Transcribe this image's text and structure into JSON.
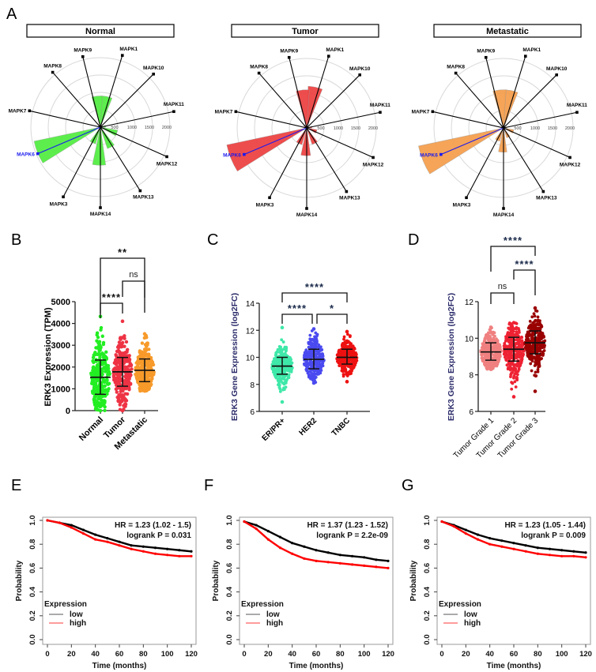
{
  "figure": {
    "panel_letters": [
      "A",
      "B",
      "C",
      "D",
      "E",
      "F",
      "G"
    ]
  },
  "chart_data": [
    {
      "panel": "A",
      "type": "polar-bar",
      "title": "Normal",
      "color": "#55ee44",
      "categories": [
        "MAPK1",
        "MAPK10",
        "MAPK11",
        "MAPK12",
        "MAPK13",
        "MAPK14",
        "MAPK3",
        "MAPK6",
        "MAPK7",
        "MAPK8",
        "MAPK9"
      ],
      "values": [
        900,
        60,
        150,
        500,
        650,
        1100,
        500,
        1950,
        60,
        70,
        900
      ],
      "highlight": "MAPK6",
      "highlight_color": "#1a1aee",
      "radial_ticks": [
        500,
        1000,
        1500,
        2000
      ],
      "rmax": 2000
    },
    {
      "panel": "A",
      "type": "polar-bar",
      "title": "Tumor",
      "color": "#ee4444",
      "categories": [
        "MAPK1",
        "MAPK10",
        "MAPK11",
        "MAPK12",
        "MAPK13",
        "MAPK14",
        "MAPK3",
        "MAPK6",
        "MAPK7",
        "MAPK8",
        "MAPK9"
      ],
      "values": [
        1200,
        60,
        150,
        300,
        500,
        800,
        500,
        2350,
        80,
        100,
        1100
      ],
      "highlight": "MAPK6",
      "highlight_color": "#1a1aee",
      "radial_ticks": [
        500,
        1000,
        1500,
        2000
      ],
      "rmax": 2000
    },
    {
      "panel": "A",
      "type": "polar-bar",
      "title": "Metastatic",
      "color": "#f5a050",
      "categories": [
        "MAPK1",
        "MAPK10",
        "MAPK11",
        "MAPK12",
        "MAPK13",
        "MAPK14",
        "MAPK3",
        "MAPK6",
        "MAPK7",
        "MAPK8",
        "MAPK9"
      ],
      "values": [
        1100,
        40,
        100,
        300,
        300,
        700,
        400,
        2500,
        60,
        80,
        1100
      ],
      "highlight": "MAPK6",
      "highlight_color": "#1a1aee",
      "radial_ticks": [
        500,
        1000,
        1500,
        2000
      ],
      "rmax": 2000
    },
    {
      "panel": "B",
      "type": "violin",
      "ylabel": "ERK3 Expression (TPM)",
      "ylim": [
        0,
        5000
      ],
      "yticks": [
        0,
        1000,
        2000,
        3000,
        4000,
        5000
      ],
      "categories": [
        "Normal",
        "Tumor",
        "Metastatic"
      ],
      "colors": [
        "#22ee22",
        "#ee3344",
        "#f79a2a"
      ],
      "median": [
        1530,
        1780,
        1850
      ],
      "q1": [
        750,
        1120,
        1330
      ],
      "q3": [
        2320,
        2440,
        2370
      ],
      "min": [
        0,
        0,
        900
      ],
      "max": [
        4320,
        4100,
        3520
      ],
      "significance": [
        {
          "from": 0,
          "to": 2,
          "label": "**"
        },
        {
          "from": 1,
          "to": 2,
          "label": "ns"
        },
        {
          "from": 0,
          "to": 1,
          "label": "****"
        }
      ]
    },
    {
      "panel": "C",
      "type": "scatter-dot",
      "ylabel": "ERK3 Gene Expression (log2FC)",
      "ylim": [
        6,
        14
      ],
      "yticks": [
        6,
        8,
        10,
        12,
        14
      ],
      "categories": [
        "ER/PR+",
        "HER2",
        "TNBC"
      ],
      "colors": [
        "#3ee8a8",
        "#4a4af0",
        "#ee1111"
      ],
      "median": [
        9.35,
        9.85,
        10.0
      ],
      "lower": [
        8.75,
        9.15,
        9.5
      ],
      "upper": [
        10.0,
        10.6,
        10.6
      ],
      "min": [
        6.7,
        8.1,
        8.2
      ],
      "max": [
        12.2,
        12.1,
        11.9
      ],
      "significance": [
        {
          "from": 0,
          "to": 2,
          "label": "****"
        },
        {
          "from": 0,
          "to": 1,
          "label": "****"
        },
        {
          "from": 1,
          "to": 2,
          "label": "*"
        }
      ]
    },
    {
      "panel": "D",
      "type": "scatter-dot",
      "ylabel": "ERK3 Gene Expression (log2FC)",
      "ylim": [
        6,
        12
      ],
      "yticks": [
        6,
        8,
        10,
        12
      ],
      "categories": [
        "Tumor Grade 1",
        "Tumor Grade 2",
        "Tumor Grade 3"
      ],
      "colors": [
        "#f08080",
        "#ee2233",
        "#9a0000"
      ],
      "median": [
        9.25,
        9.4,
        9.75
      ],
      "lower": [
        8.8,
        8.75,
        9.15
      ],
      "upper": [
        9.75,
        10.05,
        10.4
      ],
      "min": [
        8.3,
        6.8,
        7.1
      ],
      "max": [
        10.6,
        10.85,
        11.65
      ],
      "significance": [
        {
          "from": 0,
          "to": 2,
          "label": "****"
        },
        {
          "from": 1,
          "to": 2,
          "label": "****"
        },
        {
          "from": 0,
          "to": 1,
          "label": "ns"
        }
      ]
    },
    {
      "panel": "E",
      "type": "line",
      "xlabel": "Time (months)",
      "ylabel": "Probability",
      "xlim": [
        0,
        120
      ],
      "ylim": [
        0,
        1
      ],
      "xticks": [
        0,
        20,
        40,
        60,
        80,
        100,
        120
      ],
      "yticks": [
        0.0,
        0.2,
        0.4,
        0.6,
        0.8,
        1.0
      ],
      "annotation": [
        "HR = 1.23 (1.02 - 1.5)",
        "logrank P = 0.031"
      ],
      "legend_title": "Expression",
      "legend_position": "bottom-left",
      "series": [
        {
          "name": "low",
          "color": "#000000",
          "x": [
            0,
            10,
            20,
            30,
            40,
            50,
            60,
            70,
            80,
            90,
            100,
            110,
            120
          ],
          "y": [
            1.0,
            0.98,
            0.96,
            0.92,
            0.88,
            0.85,
            0.82,
            0.79,
            0.78,
            0.77,
            0.76,
            0.75,
            0.74
          ]
        },
        {
          "name": "high",
          "color": "#ff0000",
          "x": [
            0,
            10,
            20,
            30,
            40,
            50,
            60,
            70,
            80,
            90,
            100,
            110,
            120
          ],
          "y": [
            1.0,
            0.98,
            0.94,
            0.89,
            0.84,
            0.82,
            0.79,
            0.76,
            0.74,
            0.72,
            0.71,
            0.7,
            0.7
          ]
        }
      ]
    },
    {
      "panel": "F",
      "type": "line",
      "xlabel": "Time (months)",
      "ylabel": "Probability",
      "xlim": [
        0,
        120
      ],
      "ylim": [
        0,
        1
      ],
      "xticks": [
        0,
        20,
        40,
        60,
        80,
        100,
        120
      ],
      "yticks": [
        0.0,
        0.2,
        0.4,
        0.6,
        0.8,
        1.0
      ],
      "annotation": [
        "HR = 1.37 (1.23 - 1.52)",
        "logrank P = 2.2e-09"
      ],
      "legend_title": "Expression",
      "legend_position": "bottom-left",
      "series": [
        {
          "name": "low",
          "color": "#000000",
          "x": [
            0,
            10,
            20,
            30,
            40,
            50,
            60,
            70,
            80,
            90,
            100,
            110,
            120
          ],
          "y": [
            0.99,
            0.96,
            0.91,
            0.86,
            0.81,
            0.78,
            0.75,
            0.73,
            0.71,
            0.7,
            0.69,
            0.67,
            0.66
          ]
        },
        {
          "name": "high",
          "color": "#ff0000",
          "x": [
            0,
            10,
            20,
            30,
            40,
            50,
            60,
            70,
            80,
            90,
            100,
            110,
            120
          ],
          "y": [
            0.99,
            0.93,
            0.84,
            0.77,
            0.72,
            0.68,
            0.66,
            0.65,
            0.64,
            0.63,
            0.62,
            0.61,
            0.6
          ]
        }
      ]
    },
    {
      "panel": "G",
      "type": "line",
      "xlabel": "Time (months)",
      "ylabel": "Probability",
      "xlim": [
        0,
        120
      ],
      "ylim": [
        0,
        1
      ],
      "xticks": [
        0,
        20,
        40,
        60,
        80,
        100,
        120
      ],
      "yticks": [
        0.0,
        0.2,
        0.4,
        0.6,
        0.8,
        1.0
      ],
      "annotation": [
        "HR = 1.23 (1.05 - 1.44)",
        "logrank P = 0.009"
      ],
      "legend_title": "Expression",
      "legend_position": "bottom-left",
      "series": [
        {
          "name": "low",
          "color": "#000000",
          "x": [
            0,
            10,
            20,
            30,
            40,
            50,
            60,
            70,
            80,
            90,
            100,
            110,
            120
          ],
          "y": [
            0.99,
            0.96,
            0.92,
            0.88,
            0.85,
            0.83,
            0.81,
            0.79,
            0.77,
            0.76,
            0.75,
            0.74,
            0.73
          ]
        },
        {
          "name": "high",
          "color": "#ff0000",
          "x": [
            0,
            10,
            20,
            30,
            40,
            50,
            60,
            70,
            80,
            90,
            100,
            110,
            120
          ],
          "y": [
            0.99,
            0.95,
            0.89,
            0.84,
            0.8,
            0.78,
            0.76,
            0.74,
            0.72,
            0.71,
            0.7,
            0.7,
            0.69
          ]
        }
      ]
    }
  ]
}
